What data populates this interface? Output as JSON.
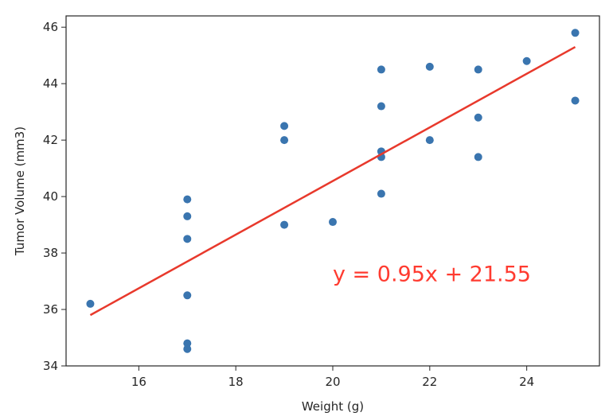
{
  "chart_data": {
    "type": "scatter",
    "title": "",
    "xlabel": "Weight (g)",
    "ylabel": "Tumor Volume (mm3)",
    "xlim": [
      14.5,
      25.5
    ],
    "ylim": [
      34,
      46.4
    ],
    "xticks": [
      16,
      18,
      20,
      22,
      24
    ],
    "yticks": [
      34,
      36,
      38,
      40,
      42,
      44,
      46
    ],
    "grid": false,
    "points": [
      {
        "x": 15,
        "y": 36.2
      },
      {
        "x": 17,
        "y": 39.9
      },
      {
        "x": 17,
        "y": 39.3
      },
      {
        "x": 17,
        "y": 38.5
      },
      {
        "x": 17,
        "y": 36.5
      },
      {
        "x": 17,
        "y": 34.8
      },
      {
        "x": 17,
        "y": 34.6
      },
      {
        "x": 19,
        "y": 42.5
      },
      {
        "x": 19,
        "y": 42.0
      },
      {
        "x": 19,
        "y": 39.0
      },
      {
        "x": 20,
        "y": 39.1
      },
      {
        "x": 21,
        "y": 44.5
      },
      {
        "x": 21,
        "y": 43.2
      },
      {
        "x": 21,
        "y": 41.6
      },
      {
        "x": 21,
        "y": 41.4
      },
      {
        "x": 21,
        "y": 40.1
      },
      {
        "x": 22,
        "y": 44.6
      },
      {
        "x": 22,
        "y": 42.0
      },
      {
        "x": 23,
        "y": 44.5
      },
      {
        "x": 23,
        "y": 42.8
      },
      {
        "x": 23,
        "y": 41.4
      },
      {
        "x": 24,
        "y": 44.8
      },
      {
        "x": 25,
        "y": 45.8
      },
      {
        "x": 25,
        "y": 43.4
      }
    ],
    "regression": {
      "slope": 0.95,
      "intercept": 21.55,
      "x_range": [
        15,
        25
      ],
      "equation_label": "y = 0.95x + 21.55",
      "label_position": {
        "x": 20,
        "y": 37
      }
    },
    "colors": {
      "points": "#3a75af",
      "line": "#e8392c",
      "equation": "#ff3b30",
      "axes": "#262626"
    }
  }
}
